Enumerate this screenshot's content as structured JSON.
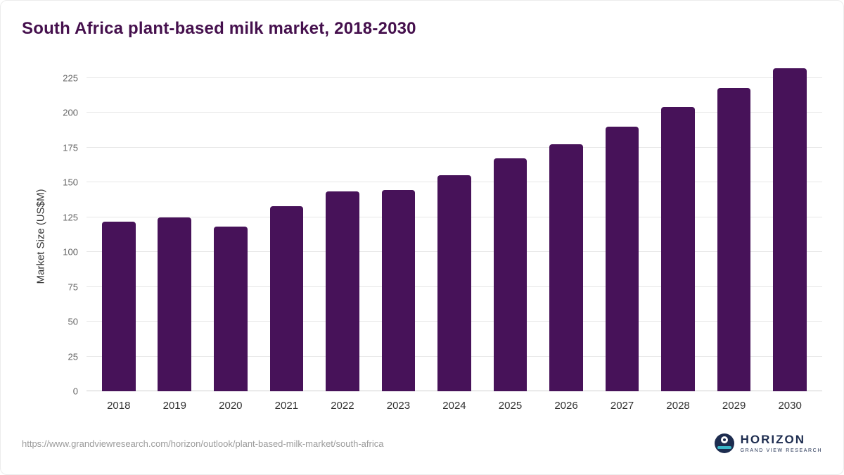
{
  "title": "South Africa plant-based milk market, 2018-2030",
  "source_url": "https://www.grandviewresearch.com/horizon/outlook/plant-based-milk-market/south-africa",
  "logo": {
    "name": "HORIZON",
    "subtitle": "GRAND VIEW RESEARCH"
  },
  "colors": {
    "bar": "#471259",
    "title_text": "#45104d",
    "gridline": "#e8e8e8",
    "baseline": "#cfcfcf",
    "tick_text": "#666666",
    "xlabel_text": "#333333",
    "source_text": "#9b9b9b",
    "logo_navy": "#1d2c4f",
    "logo_teal": "#3bb6c9"
  },
  "chart_data": {
    "type": "bar",
    "title": "South Africa plant-based milk market, 2018-2030",
    "xlabel": "",
    "ylabel": "Market Size (US$M)",
    "categories": [
      "2018",
      "2019",
      "2020",
      "2021",
      "2022",
      "2023",
      "2024",
      "2025",
      "2026",
      "2027",
      "2028",
      "2029",
      "2030"
    ],
    "values": [
      122,
      125,
      118,
      133,
      143.5,
      144.5,
      155,
      167,
      177.5,
      190,
      204,
      218,
      232
    ],
    "ylim": [
      0,
      240
    ],
    "yticks": [
      0,
      25,
      50,
      75,
      100,
      125,
      150,
      175,
      200,
      225
    ],
    "grid": true,
    "legend_position": "none",
    "bar_color": "#471259"
  }
}
